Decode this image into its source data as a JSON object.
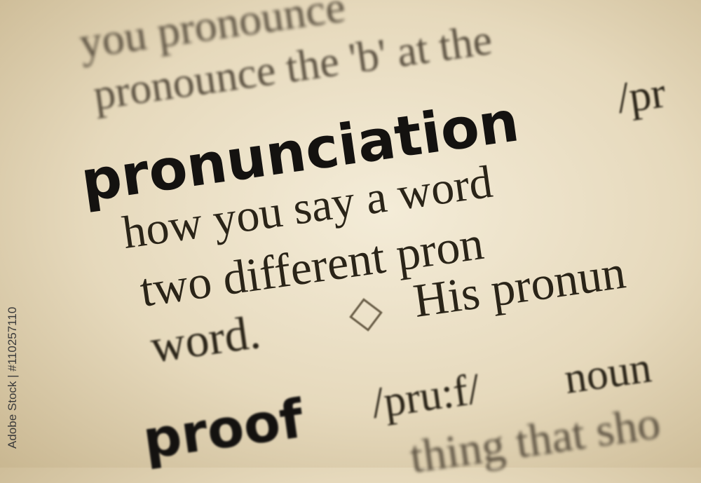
{
  "page": {
    "lines": [
      "you pronounce",
      "pronounce the 'b' at the",
      "how you say a word",
      "two  different  pron",
      "word.",
      "His pronun",
      "thing that sho"
    ],
    "headword": "pronunciation",
    "headword_pron": "/pr",
    "next_headword": "proof",
    "next_pron": "/pru:f/",
    "next_pos": "noun",
    "watermark": "Adobe Stock | #110257110"
  }
}
